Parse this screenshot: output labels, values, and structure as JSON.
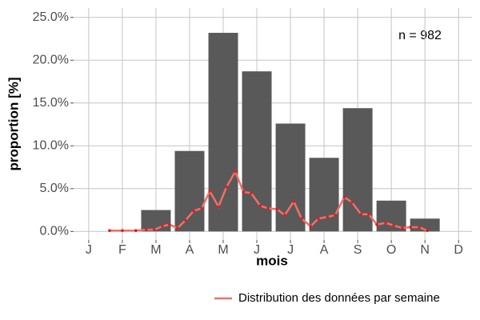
{
  "chart_data": {
    "type": "bar",
    "xlabel": "mois",
    "ylabel": "proportion [%]",
    "annotation": "n = 982",
    "bars": {
      "x": [
        1,
        2,
        3,
        4,
        5,
        6,
        7,
        8,
        9,
        10,
        11,
        12
      ],
      "values": [
        0,
        0,
        2.5,
        9.4,
        23.2,
        18.7,
        12.6,
        8.6,
        14.4,
        3.6,
        1.5,
        0
      ],
      "color": "#595959"
    },
    "series": [
      {
        "name": "Distribution des données par semaine",
        "color": "#f07068",
        "point_color": "#e41a1c",
        "x": [
          1.62,
          2.0,
          2.4,
          2.71,
          2.95,
          3.19,
          3.4,
          3.64,
          3.88,
          4.12,
          4.36,
          4.6,
          4.86,
          5.1,
          5.36,
          5.6,
          5.83,
          6.1,
          6.33,
          6.6,
          6.83,
          7.1,
          7.33,
          7.6,
          7.83,
          8.1,
          8.33,
          8.6,
          8.83,
          9.1,
          9.33,
          9.57,
          9.83,
          10.07,
          10.33,
          10.57,
          10.83,
          11.07
        ],
        "values": [
          0.1,
          0.1,
          0.1,
          0.2,
          0.2,
          0.6,
          0.8,
          0.4,
          1.3,
          2.4,
          2.7,
          4.7,
          2.9,
          5.2,
          7.0,
          4.6,
          4.5,
          3.0,
          2.7,
          2.6,
          1.9,
          3.5,
          1.5,
          0.6,
          1.5,
          1.7,
          1.9,
          4.0,
          3.4,
          2.0,
          2.0,
          0.8,
          1.0,
          0.7,
          0.4,
          0.5,
          0.5,
          0.1
        ]
      }
    ],
    "xlim": [
      0.55,
      12.4
    ],
    "xticks": [
      {
        "value": 1,
        "label": "J"
      },
      {
        "value": 2,
        "label": "F"
      },
      {
        "value": 3,
        "label": "M"
      },
      {
        "value": 4,
        "label": "A"
      },
      {
        "value": 5,
        "label": "M"
      },
      {
        "value": 6,
        "label": "J"
      },
      {
        "value": 7,
        "label": "J"
      },
      {
        "value": 8,
        "label": "A"
      },
      {
        "value": 9,
        "label": "S"
      },
      {
        "value": 10,
        "label": "O"
      },
      {
        "value": 11,
        "label": "N"
      },
      {
        "value": 12,
        "label": "D"
      }
    ],
    "ylim": [
      -1,
      26.1
    ],
    "yticks": [
      {
        "value": 0,
        "label": "0.0%"
      },
      {
        "value": 5,
        "label": "5.0%"
      },
      {
        "value": 10,
        "label": "10.0%"
      },
      {
        "value": 15,
        "label": "15.0%"
      },
      {
        "value": 20,
        "label": "20.0%"
      },
      {
        "value": 25,
        "label": "25.0%"
      }
    ],
    "grid": true
  }
}
